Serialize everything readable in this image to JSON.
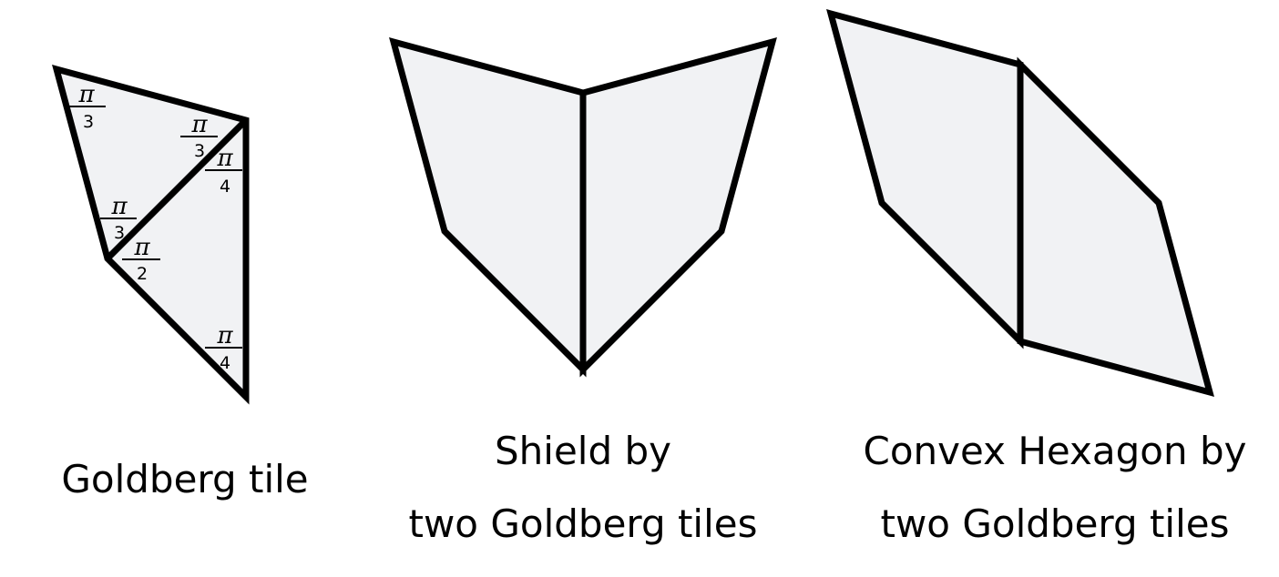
{
  "colors": {
    "tile_fill": "#f1f2f4",
    "stroke": "#000000",
    "background": "#ffffff"
  },
  "angle_labels": {
    "apex_top_left": {
      "num": "π",
      "den": "3"
    },
    "vertex_top_right": {
      "num": "π",
      "den": "3"
    },
    "vertex_right_upper": {
      "num": "π",
      "den": "4"
    },
    "vertex_mid_upper": {
      "num": "π",
      "den": "3"
    },
    "vertex_mid_lower": {
      "num": "π",
      "den": "2"
    },
    "vertex_bottom_right": {
      "num": "π",
      "den": "4"
    }
  },
  "captions": {
    "goldberg_tile": "Goldberg tile",
    "shield_line1": "Shield by",
    "shield_line2": "two Goldberg tiles",
    "hexagon_line1": "Convex Hexagon by",
    "hexagon_line2": "two Goldberg tiles"
  }
}
